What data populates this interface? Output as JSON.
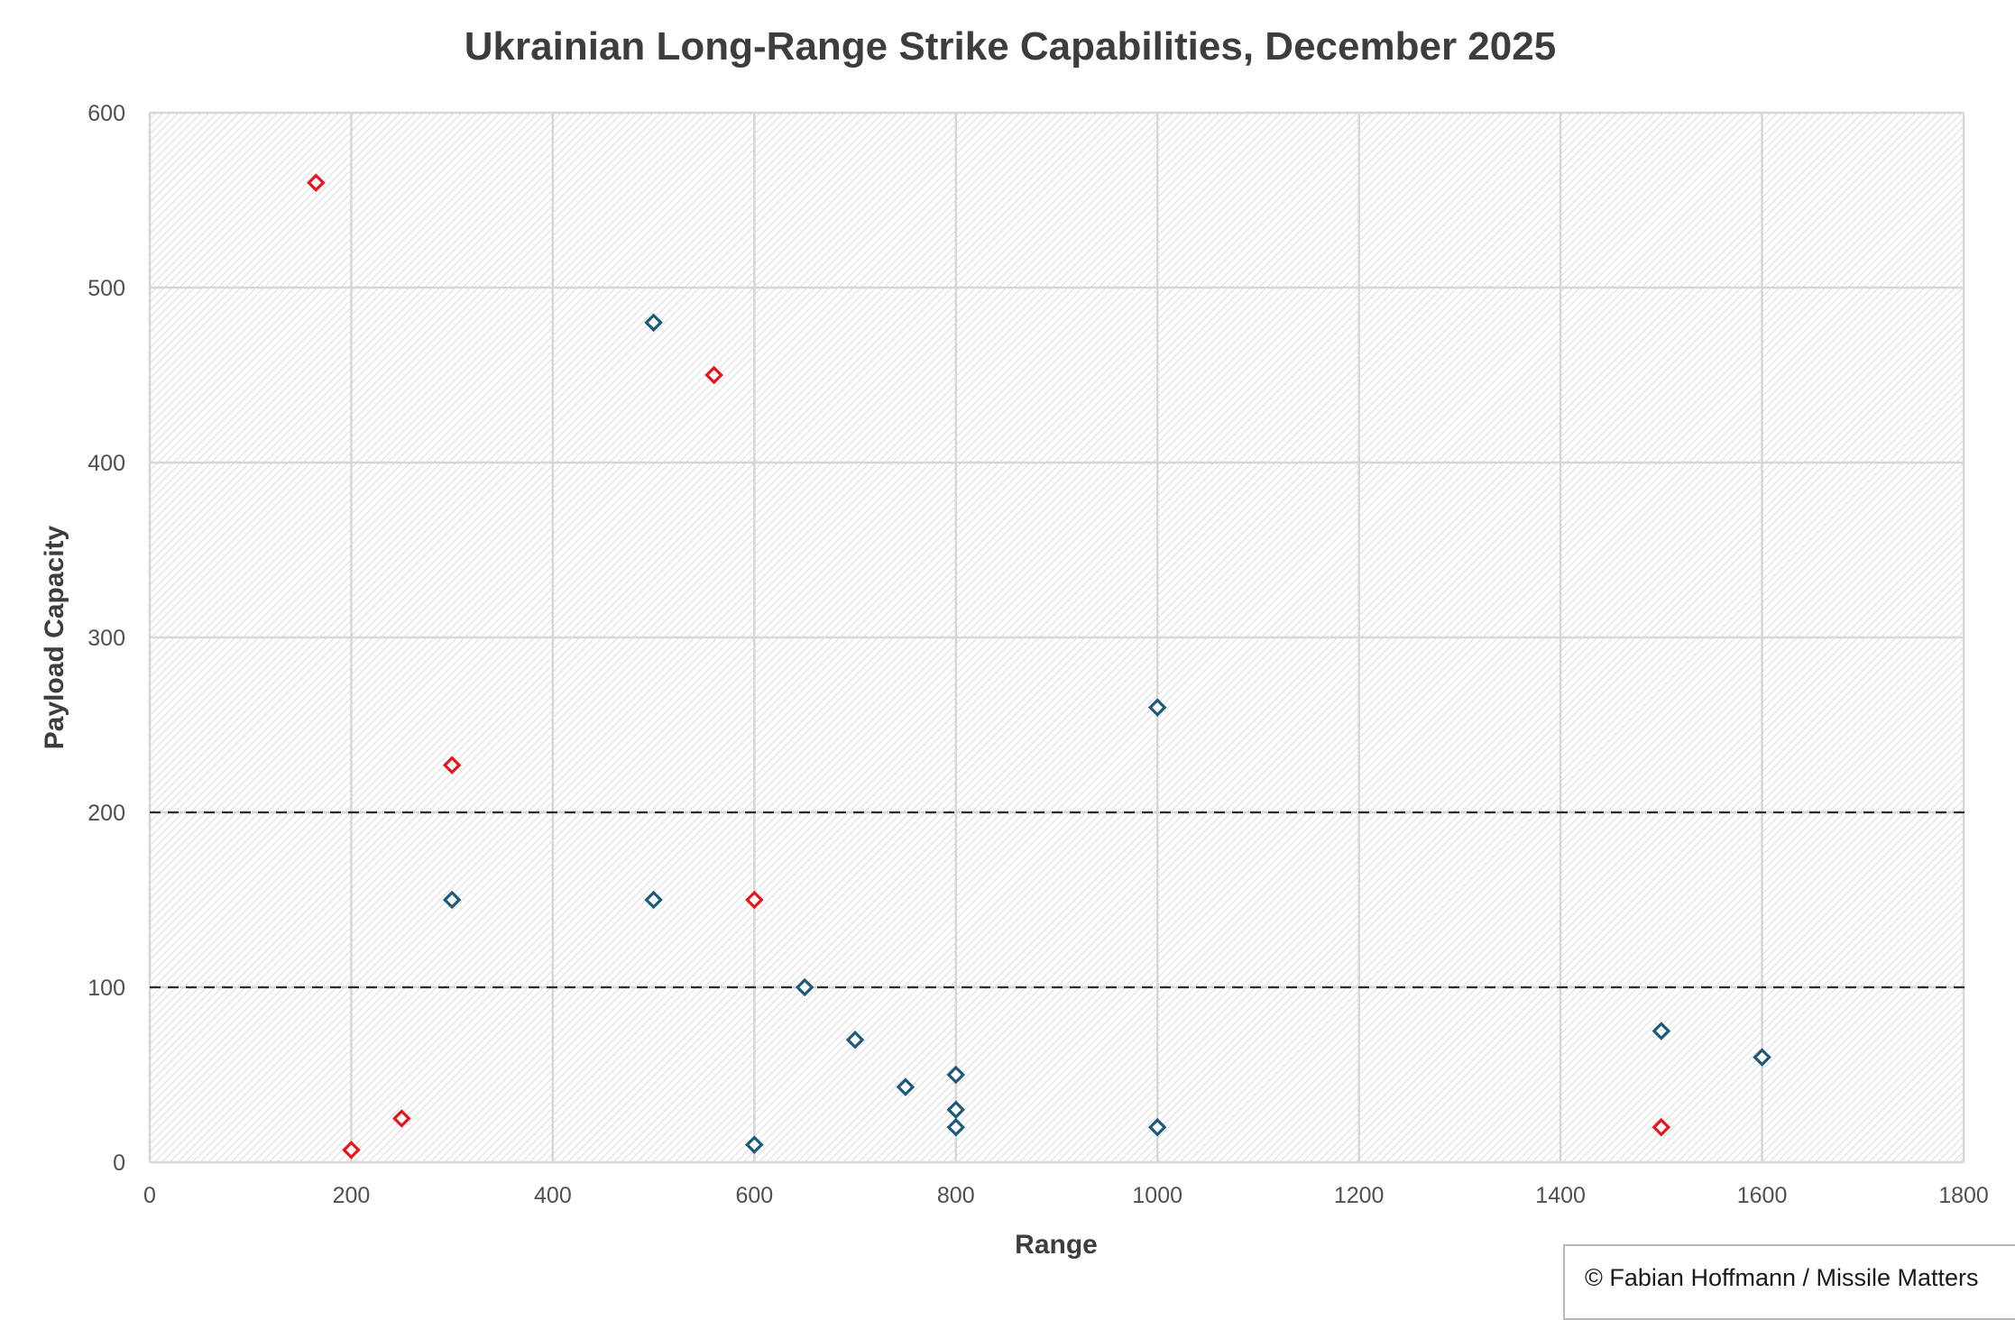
{
  "chart_data": {
    "type": "scatter",
    "title": "Ukrainian Long-Range Strike Capabilities, December 2025",
    "xlabel": "Range",
    "ylabel": "Payload Capacity",
    "xlim": [
      0,
      1800
    ],
    "ylim": [
      0,
      600
    ],
    "xticks": [
      "0",
      "200",
      "400",
      "600",
      "800",
      "1000",
      "1200",
      "1400",
      "1600",
      "1800"
    ],
    "yticks": [
      "0",
      "100",
      "200",
      "300",
      "400",
      "500",
      "600"
    ],
    "grid": true,
    "reference_lines_y": [
      100,
      200
    ],
    "series": [
      {
        "name": "blue",
        "color": "#1c5a7a",
        "points": [
          [
            500,
            480
          ],
          [
            1000,
            260
          ],
          [
            300,
            150
          ],
          [
            500,
            150
          ],
          [
            650,
            100
          ],
          [
            700,
            70
          ],
          [
            750,
            43
          ],
          [
            800,
            50
          ],
          [
            800,
            30
          ],
          [
            800,
            20
          ],
          [
            600,
            10
          ],
          [
            1000,
            20
          ],
          [
            1500,
            75
          ],
          [
            1600,
            60
          ]
        ]
      },
      {
        "name": "red",
        "color": "#e8141c",
        "points": [
          [
            165,
            560
          ],
          [
            560,
            450
          ],
          [
            300,
            227
          ],
          [
            600,
            150
          ],
          [
            200,
            7
          ],
          [
            250,
            25
          ],
          [
            1500,
            20
          ]
        ]
      }
    ]
  },
  "credit": "© Fabian Hoffmann / Missile Matters"
}
